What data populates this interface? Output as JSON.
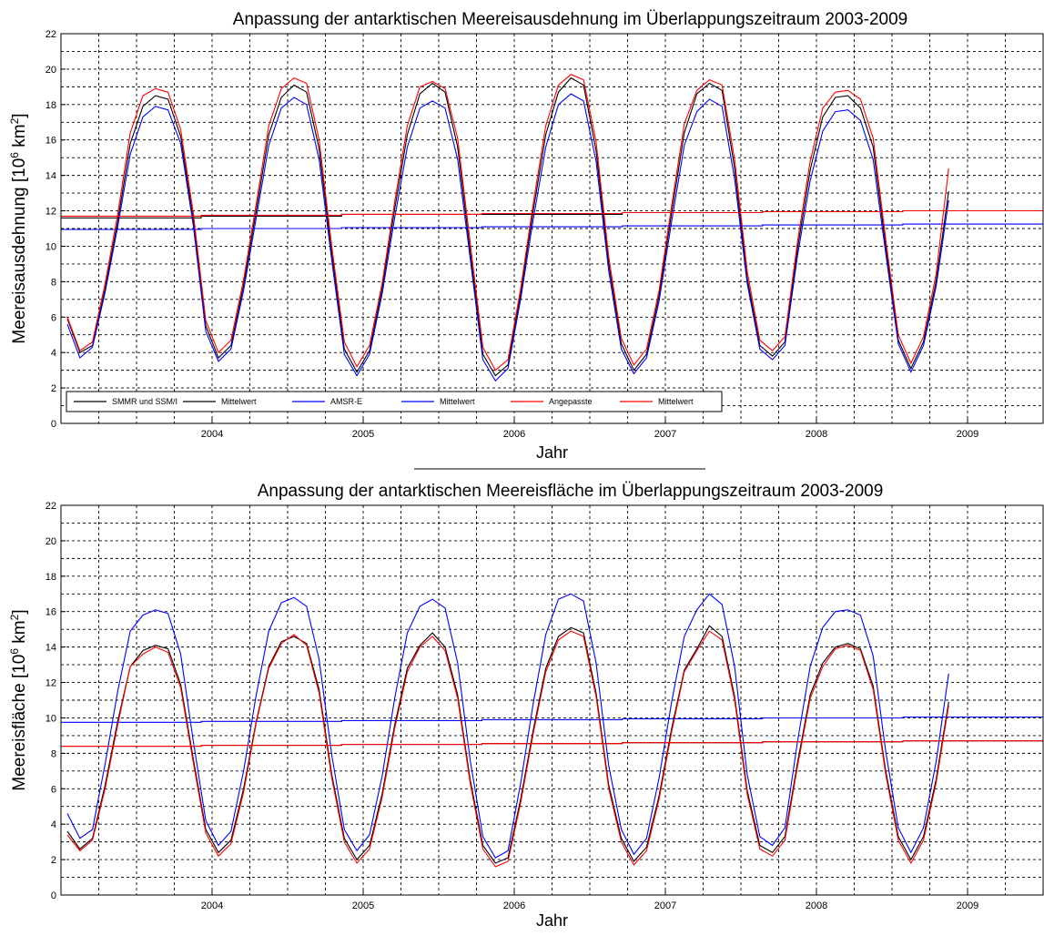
{
  "chart_data": [
    {
      "type": "line",
      "title": "Anpassung der antarktischen Meereisausdehnung im Überlappungszeitraum 2003-2009",
      "xlabel": "Jahr",
      "ylabel": "Meereisausdehnung [10^6 km^2]",
      "ylabel_main": "Meereisausdehnung [10",
      "ylabel_exp1": "6",
      "ylabel_mid": " km",
      "ylabel_exp2": "2",
      "ylabel_end": "]",
      "xlim": [
        2003.0,
        2009.5
      ],
      "ylim": [
        0,
        22
      ],
      "yticks": [
        0,
        2,
        4,
        6,
        8,
        10,
        12,
        14,
        16,
        18,
        20,
        22
      ],
      "xticks": [
        2004,
        2005,
        2006,
        2007,
        2008,
        2009
      ],
      "grid": true,
      "legend_position": "bottom-left",
      "legend": [
        "SMMR und SSM/I",
        "Mittelwert",
        "AMSR-E",
        "Mittelwert",
        "Angepasste",
        "Mittelwert"
      ],
      "x_start": 2003.042,
      "x_step": 0.08333,
      "series": [
        {
          "name": "SMMR und SSM/I",
          "color": "#000000",
          "values": [
            5.9,
            4.0,
            4.4,
            7.6,
            11.4,
            15.8,
            17.9,
            18.5,
            18.3,
            16.2,
            11.5,
            5.5,
            3.7,
            4.4,
            7.8,
            12.0,
            16.3,
            18.4,
            19.1,
            18.7,
            15.5,
            9.6,
            4.2,
            2.9,
            4.1,
            7.6,
            12.1,
            16.3,
            18.6,
            19.2,
            18.7,
            15.6,
            9.7,
            3.9,
            2.7,
            3.3,
            7.3,
            12.0,
            16.3,
            18.7,
            19.5,
            19.1,
            15.4,
            9.0,
            4.5,
            3.0,
            3.9,
            7.2,
            11.9,
            16.4,
            18.6,
            19.2,
            18.8,
            14.4,
            8.2,
            4.4,
            3.8,
            4.6,
            9.9,
            14.3,
            17.3,
            18.4,
            18.5,
            17.8,
            15.6,
            10.0,
            4.7,
            3.1,
            4.6,
            8.0,
            13.1
          ]
        },
        {
          "name": "Mittelwert",
          "color": "#000000",
          "values": [
            11.6,
            11.7,
            11.8,
            11.8,
            11.9,
            11.95,
            12.0
          ]
        },
        {
          "name": "AMSR-E",
          "color": "#0000ff",
          "values": [
            5.6,
            3.7,
            4.3,
            7.4,
            11.1,
            15.2,
            17.3,
            17.9,
            17.7,
            15.8,
            11.2,
            5.2,
            3.5,
            4.2,
            7.5,
            11.6,
            15.7,
            17.8,
            18.4,
            18.0,
            14.9,
            9.2,
            3.9,
            2.7,
            3.9,
            7.3,
            11.6,
            15.6,
            17.8,
            18.2,
            17.8,
            14.9,
            9.3,
            3.6,
            2.4,
            3.1,
            7.0,
            11.5,
            15.6,
            18.0,
            18.6,
            18.2,
            14.8,
            8.6,
            4.2,
            2.8,
            3.7,
            6.9,
            11.4,
            15.7,
            17.6,
            18.3,
            17.9,
            13.8,
            7.9,
            4.2,
            3.6,
            4.4,
            9.5,
            13.7,
            16.5,
            17.6,
            17.7,
            17.1,
            14.9,
            9.6,
            4.5,
            2.9,
            4.4,
            7.7,
            12.6
          ]
        },
        {
          "name": "Mittelwert",
          "color": "#0000ff",
          "values": [
            10.95,
            11.0,
            11.05,
            11.1,
            11.15,
            11.2,
            11.25
          ]
        },
        {
          "name": "Angepasste",
          "color": "#ff0000",
          "values": [
            6.0,
            4.1,
            4.6,
            7.9,
            11.8,
            16.4,
            18.5,
            18.9,
            18.7,
            16.6,
            11.9,
            5.8,
            4.0,
            4.7,
            8.1,
            12.4,
            16.8,
            18.9,
            19.5,
            19.2,
            16.0,
            10.0,
            4.6,
            3.2,
            4.4,
            7.9,
            12.5,
            16.8,
            19.0,
            19.3,
            18.9,
            16.1,
            10.2,
            4.3,
            3.0,
            3.6,
            7.6,
            12.4,
            16.8,
            19.1,
            19.7,
            19.4,
            15.9,
            9.4,
            4.8,
            3.3,
            4.2,
            7.5,
            12.3,
            16.9,
            18.8,
            19.4,
            19.1,
            14.9,
            8.6,
            4.7,
            4.1,
            4.9,
            10.3,
            14.8,
            17.8,
            18.7,
            18.8,
            18.3,
            16.1,
            10.4,
            5.0,
            3.4,
            4.9,
            8.4,
            14.4
          ]
        },
        {
          "name": "Mittelwert",
          "color": "#ff0000",
          "values": [
            11.7,
            11.75,
            11.8,
            11.85,
            11.9,
            11.95,
            12.0
          ]
        }
      ]
    },
    {
      "type": "line",
      "title": "Anpassung der antarktischen Meereisfläche im Überlappungszeitraum 2003-2009",
      "xlabel": "Jahr",
      "ylabel": "Meereisfläche [10^6 km^2]",
      "ylabel_main": "Meereisfläche [10",
      "ylabel_exp1": "6",
      "ylabel_mid": " km",
      "ylabel_exp2": "2",
      "ylabel_end": "]",
      "xlim": [
        2003.0,
        2009.5
      ],
      "ylim": [
        0,
        22
      ],
      "yticks": [
        0,
        2,
        4,
        6,
        8,
        10,
        12,
        14,
        16,
        18,
        20,
        22
      ],
      "xticks": [
        2004,
        2005,
        2006,
        2007,
        2008,
        2009
      ],
      "grid": true,
      "x_start": 2003.042,
      "x_step": 0.08333,
      "series": [
        {
          "name": "SMMR und SSM/I",
          "color": "#000000",
          "values": [
            3.6,
            2.6,
            3.2,
            6.2,
            9.8,
            12.9,
            13.8,
            14.1,
            13.9,
            11.9,
            7.7,
            3.7,
            2.4,
            3.1,
            6.0,
            9.8,
            12.9,
            14.3,
            14.6,
            14.2,
            11.6,
            6.8,
            3.2,
            2.0,
            2.8,
            5.7,
            9.6,
            12.8,
            14.1,
            14.8,
            14.0,
            11.3,
            6.5,
            2.8,
            1.8,
            2.1,
            5.4,
            9.3,
            12.8,
            14.6,
            15.1,
            14.8,
            11.4,
            6.2,
            3.2,
            1.9,
            2.7,
            5.6,
            9.4,
            12.7,
            13.9,
            15.2,
            14.6,
            11.2,
            5.9,
            2.8,
            2.4,
            3.3,
            7.5,
            11.3,
            13.1,
            14.0,
            14.2,
            13.9,
            11.8,
            7.0,
            3.3,
            2.0,
            3.3,
            6.5,
            10.9
          ]
        },
        {
          "name": "Mittelwert",
          "color": "#000000",
          "values": [
            8.4,
            8.45,
            8.5,
            8.55,
            8.6,
            8.65,
            8.7
          ]
        },
        {
          "name": "AMSR-E",
          "color": "#0000ff",
          "values": [
            4.6,
            3.2,
            3.7,
            7.4,
            11.5,
            14.9,
            15.8,
            16.1,
            15.9,
            13.6,
            8.7,
            4.2,
            2.8,
            3.6,
            7.0,
            11.3,
            14.9,
            16.5,
            16.8,
            16.3,
            13.3,
            7.9,
            3.7,
            2.5,
            3.4,
            6.7,
            11.1,
            14.8,
            16.3,
            16.7,
            16.2,
            13.1,
            7.6,
            3.3,
            2.1,
            2.5,
            6.3,
            10.8,
            14.7,
            16.7,
            17.0,
            16.6,
            13.1,
            7.3,
            3.7,
            2.3,
            3.2,
            6.6,
            10.9,
            14.6,
            16.1,
            17.0,
            16.4,
            12.9,
            6.8,
            3.3,
            2.8,
            3.8,
            8.7,
            12.9,
            15.1,
            16.0,
            16.1,
            15.8,
            13.5,
            8.1,
            3.8,
            2.4,
            3.8,
            7.5,
            12.5
          ]
        },
        {
          "name": "Mittelwert",
          "color": "#0000ff",
          "values": [
            9.75,
            9.8,
            9.85,
            9.9,
            9.95,
            10.0,
            10.05
          ]
        },
        {
          "name": "Angepasste",
          "color": "#ff0000",
          "values": [
            3.4,
            2.5,
            3.1,
            6.0,
            9.6,
            12.9,
            13.6,
            14.0,
            13.7,
            11.7,
            7.5,
            3.5,
            2.2,
            2.9,
            5.8,
            9.7,
            12.8,
            14.2,
            14.7,
            14.1,
            11.4,
            6.6,
            3.0,
            1.8,
            2.6,
            5.5,
            9.4,
            12.6,
            14.0,
            14.6,
            13.8,
            11.1,
            6.3,
            2.6,
            1.6,
            1.9,
            5.2,
            9.1,
            12.6,
            14.4,
            14.9,
            14.6,
            11.2,
            6.0,
            3.0,
            1.7,
            2.5,
            5.4,
            9.2,
            12.6,
            13.8,
            14.9,
            14.4,
            11.0,
            5.7,
            2.6,
            2.2,
            3.1,
            7.3,
            11.1,
            12.9,
            13.9,
            14.1,
            13.8,
            11.6,
            6.8,
            3.1,
            1.8,
            3.1,
            6.3,
            10.7
          ]
        },
        {
          "name": "Mittelwert",
          "color": "#ff0000",
          "values": [
            8.4,
            8.45,
            8.5,
            8.55,
            8.6,
            8.65,
            8.7
          ]
        }
      ]
    }
  ]
}
